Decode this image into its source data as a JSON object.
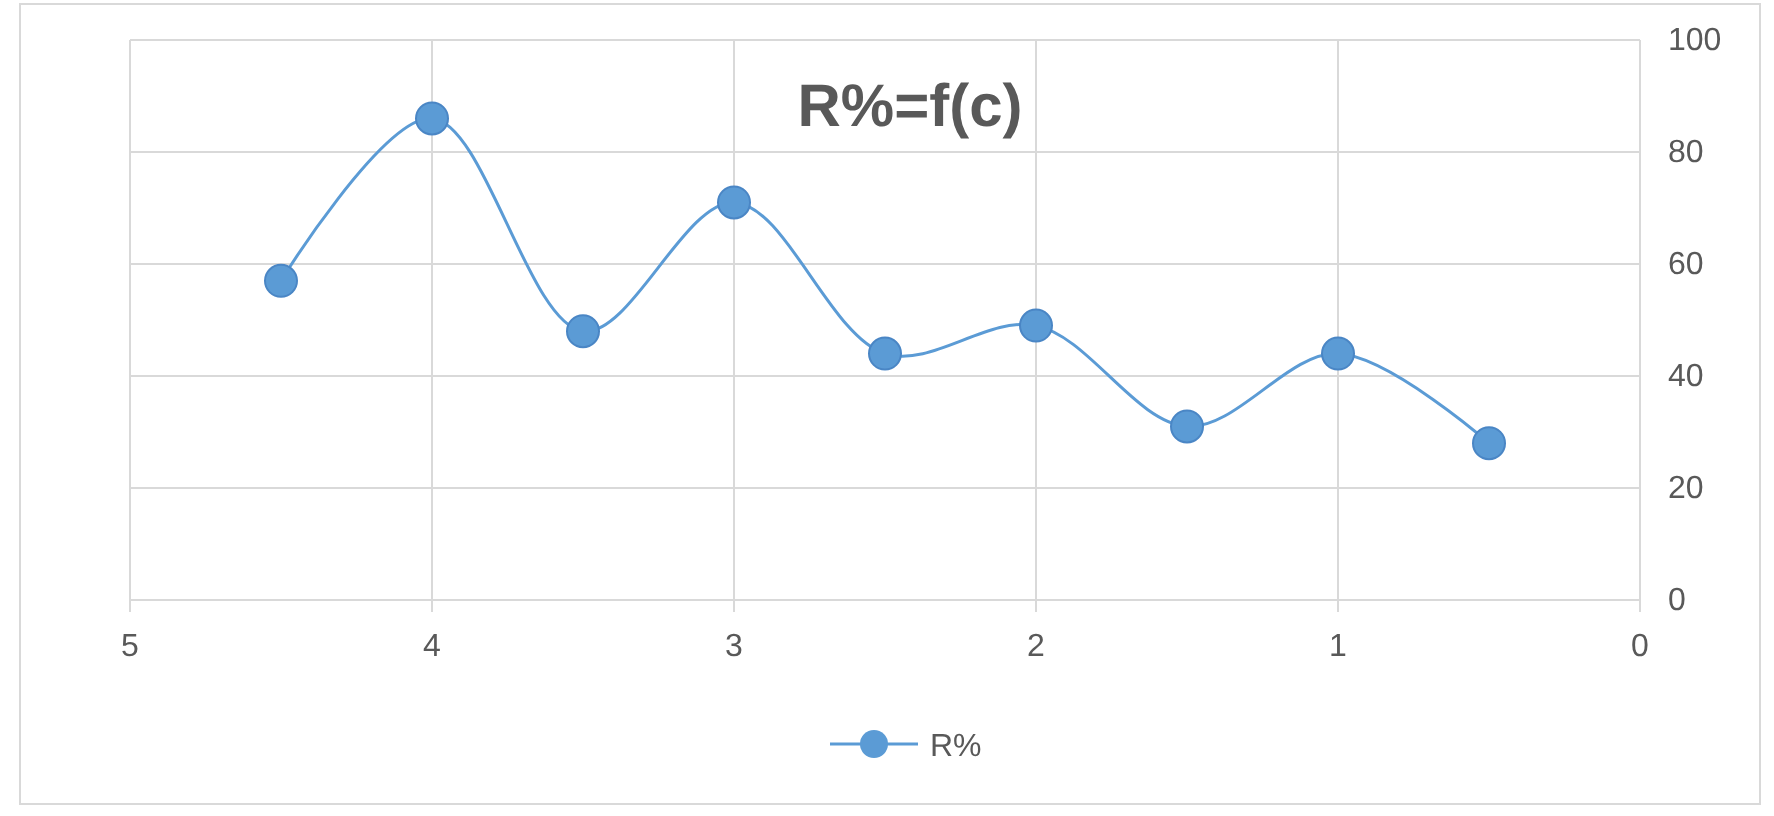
{
  "chart_data": {
    "type": "line",
    "title": "R%=f(c)",
    "x": [
      4.5,
      4,
      3.5,
      3,
      2.5,
      2,
      1.5,
      1,
      0.5
    ],
    "series": [
      {
        "name": "R%",
        "color": "#5b9bd5",
        "values": [
          57,
          86,
          48,
          71,
          44,
          49,
          31,
          44,
          28
        ]
      }
    ],
    "xlim": [
      5,
      0
    ],
    "xticks": [
      5,
      4,
      3,
      2,
      1,
      0
    ],
    "ylim": [
      0,
      100
    ],
    "yticks": [
      0,
      20,
      40,
      60,
      80,
      100
    ],
    "grid": true,
    "legend": "bottom",
    "marker": "circle",
    "line_style": "solid"
  }
}
